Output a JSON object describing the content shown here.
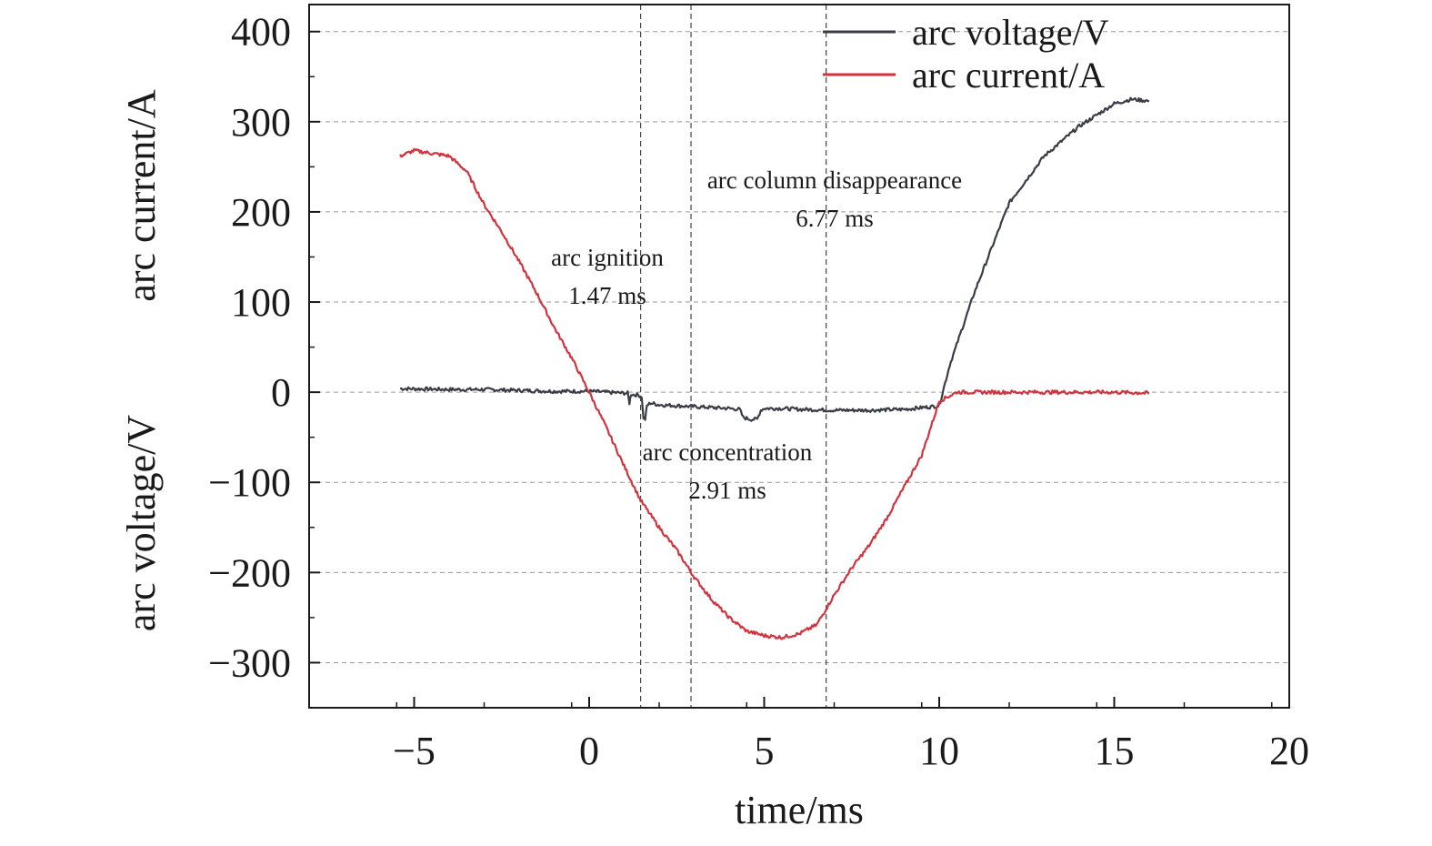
{
  "chart_data": {
    "type": "line",
    "xlabel": "time/ms",
    "ylabel_upper": "arc current/A",
    "ylabel_lower": "arc voltage/V",
    "xlim": [
      -8,
      20
    ],
    "ylim": [
      -350,
      430
    ],
    "x_ticks": [
      -5,
      0,
      5,
      10,
      15,
      20
    ],
    "x_tick_labels": [
      "−5",
      "0",
      "5",
      "10",
      "15",
      "20"
    ],
    "y_ticks": [
      400,
      300,
      200,
      100,
      0,
      -100,
      -200,
      -300
    ],
    "y_tick_labels": [
      "400",
      "300",
      "200",
      "100",
      "0",
      "−100",
      "−200",
      "−300"
    ],
    "grid": "horizontal-dashed",
    "legend_position": "top-right",
    "series": [
      {
        "name": "arc voltage/V",
        "color": "#3a3d45",
        "x": [
          -5.4,
          -4,
          -3,
          -2,
          -1,
          0,
          0.5,
          1,
          1.1,
          1.15,
          1.2,
          1.3,
          1.4,
          1.5,
          1.55,
          1.6,
          1.65,
          1.75,
          2,
          3,
          4,
          4.3,
          4.4,
          4.6,
          4.8,
          4.9,
          5,
          5.5,
          6,
          7,
          8,
          9,
          9.8,
          10.0,
          10.1,
          10.3,
          11,
          11.5,
          12,
          13,
          14,
          15,
          15.5,
          16.0
        ],
        "y": [
          4,
          3,
          3,
          2,
          1,
          1,
          0,
          -1,
          -1,
          -12,
          -2,
          -3,
          -3,
          -5,
          -28,
          -30,
          -15,
          -12,
          -14,
          -16,
          -18,
          -19,
          -28,
          -30,
          -30,
          -20,
          -18,
          -18,
          -19,
          -20,
          -20,
          -19,
          -16,
          -15,
          0,
          30,
          110,
          160,
          210,
          262,
          295,
          320,
          325,
          323
        ]
      },
      {
        "name": "arc current/A",
        "color": "#d1343f",
        "x": [
          -5.4,
          -5,
          -4.5,
          -4,
          -3.5,
          -3,
          -2.5,
          -2,
          -1.5,
          -1,
          -0.5,
          0,
          0.5,
          1,
          1.47,
          2,
          2.5,
          3,
          3.5,
          4,
          4.5,
          5,
          5.5,
          6,
          6.5,
          7,
          7.5,
          8,
          8.5,
          9,
          9.5,
          10,
          10.5,
          11,
          12,
          13,
          14,
          15,
          16.0
        ],
        "y": [
          262,
          268,
          265,
          262,
          245,
          208,
          178,
          145,
          110,
          72,
          38,
          0,
          -40,
          -82,
          -120,
          -150,
          -175,
          -205,
          -230,
          -250,
          -265,
          -270,
          -272,
          -268,
          -258,
          -225,
          -195,
          -170,
          -140,
          -105,
          -70,
          -10,
          0,
          0,
          0,
          0,
          0,
          0,
          -1
        ]
      }
    ],
    "event_lines": [
      1.47,
      2.91,
      6.77
    ],
    "annotations": [
      {
        "text": "arc ignition",
        "value": "1.47 ms"
      },
      {
        "text": "arc concentration",
        "value": "2.91 ms"
      },
      {
        "text": "arc column disappearance",
        "value": "6.77 ms"
      }
    ]
  }
}
